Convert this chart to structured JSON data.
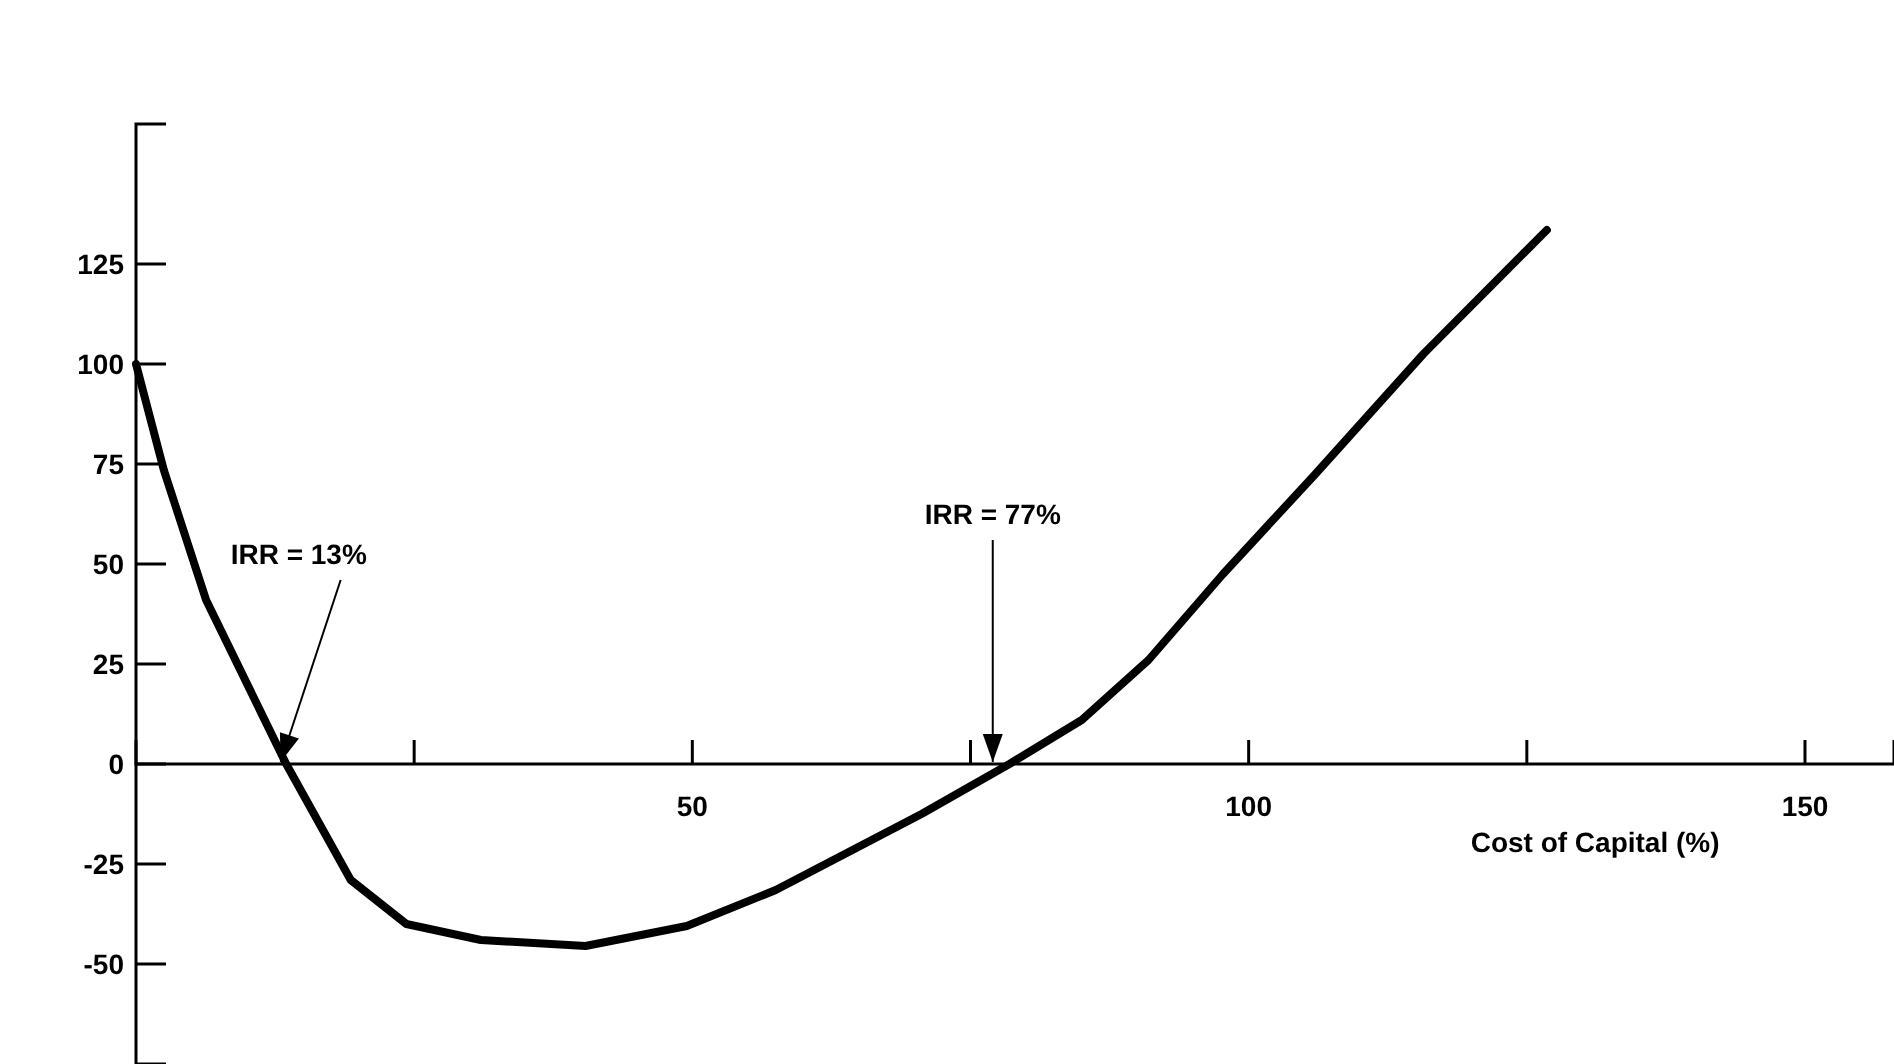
{
  "chart_data": {
    "type": "line",
    "xlabel": "Cost of Capital (%)",
    "x": [
      0,
      2.5,
      6.3,
      13.5,
      19.3,
      24.3,
      31,
      40.4,
      49.5,
      57.5,
      70.6,
      78.5,
      85,
      91,
      97.7,
      106,
      115.7,
      126.8
    ],
    "series": [
      {
        "color": "#000000",
        "values": [
          100,
          73.5,
          41,
          0,
          -29,
          -40,
          -44,
          -45.5,
          -40.5,
          -31.5,
          -12.5,
          0,
          11,
          26,
          47.5,
          72.5,
          102.5,
          133.5
        ]
      }
    ],
    "xlim": [
      0,
      158
    ],
    "xticks": [
      {
        "value": 25,
        "label": null
      },
      50,
      {
        "value": 75,
        "label": null
      },
      100,
      {
        "value": 125,
        "label": null
      },
      150
    ],
    "ylim": [
      -75,
      160
    ],
    "yticks": [
      -50,
      -25,
      0,
      25,
      50,
      75,
      100,
      125
    ],
    "annotations": [
      {
        "text": "IRR = 13%",
        "x": 13,
        "y": 0
      },
      {
        "text": "IRR = 77%",
        "x": 77,
        "y": 0
      }
    ],
    "grid": false,
    "marker": "none",
    "line_style": "solid"
  }
}
